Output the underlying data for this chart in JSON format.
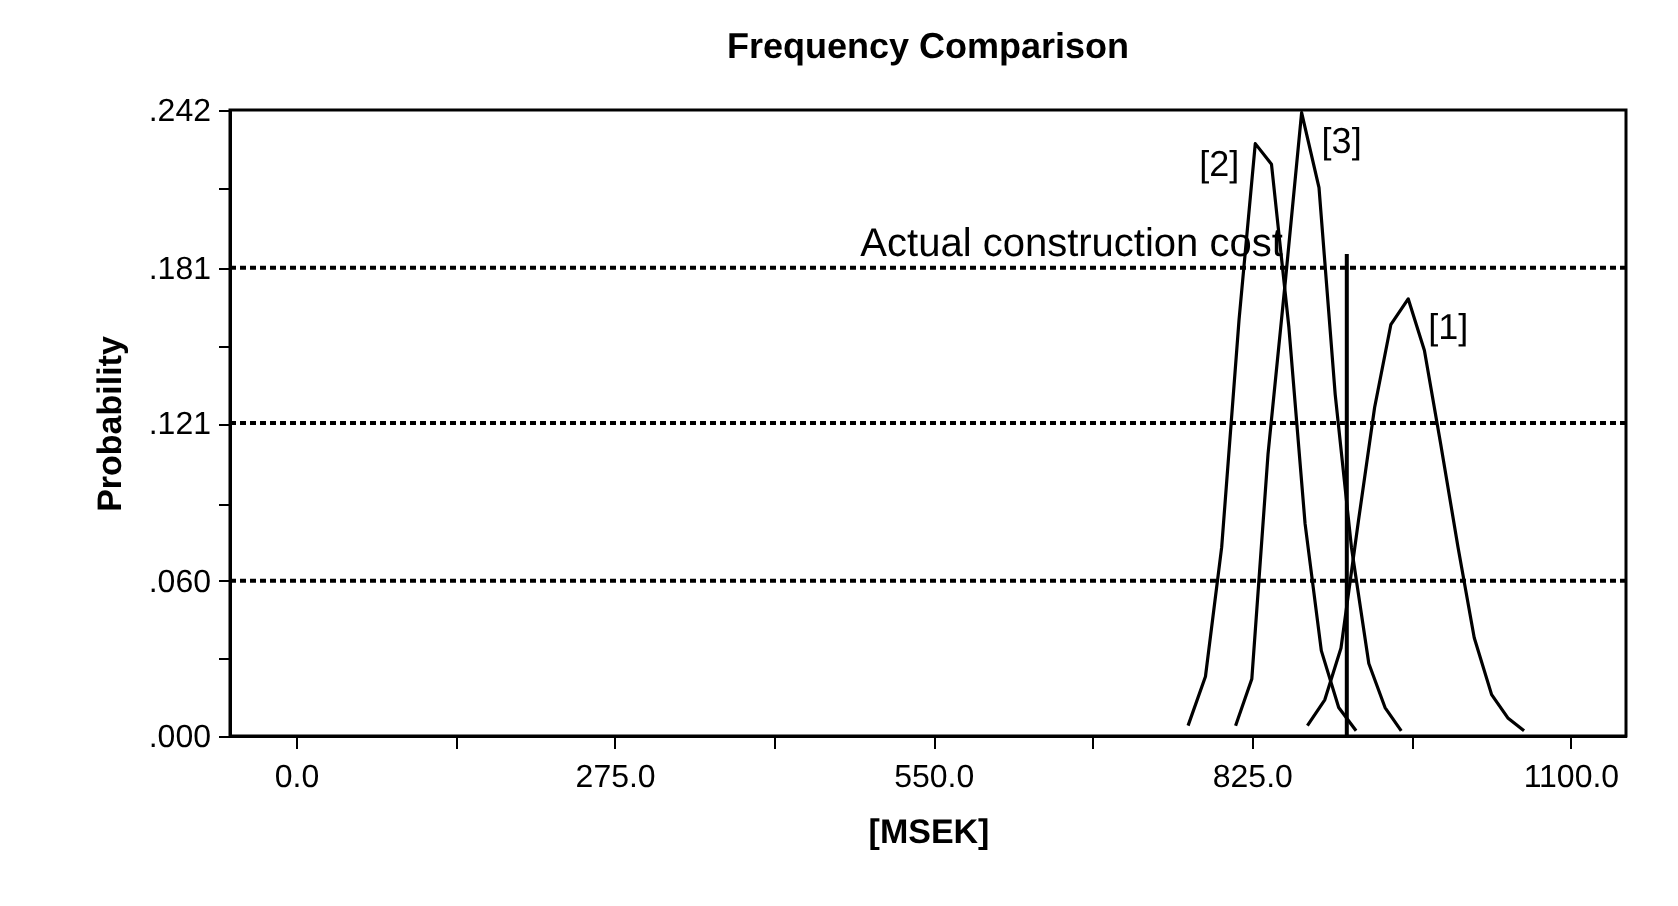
{
  "chart_data": {
    "type": "line",
    "title": "Frequency Comparison",
    "xlabel": "[MSEK]",
    "ylabel": "Probability",
    "xlim": [
      -57,
      1148
    ],
    "xticks": [
      {
        "value": 0,
        "label": "0.0"
      },
      {
        "value": 137.5,
        "label": null
      },
      {
        "value": 275,
        "label": "275.0"
      },
      {
        "value": 412.5,
        "label": null
      },
      {
        "value": 550,
        "label": "550.0"
      },
      {
        "value": 687.5,
        "label": null
      },
      {
        "value": 825,
        "label": "825.0"
      },
      {
        "value": 962.5,
        "label": null
      },
      {
        "value": 1100,
        "label": "1100.0"
      }
    ],
    "ylim": [
      0,
      0.242
    ],
    "yticks": [
      {
        "value": 0,
        "label": ".000"
      },
      {
        "value": 0.03,
        "label": null
      },
      {
        "value": 0.06,
        "label": ".060"
      },
      {
        "value": 0.09,
        "label": null
      },
      {
        "value": 0.121,
        "label": ".121"
      },
      {
        "value": 0.151,
        "label": null
      },
      {
        "value": 0.181,
        "label": ".181"
      },
      {
        "value": 0.212,
        "label": null
      },
      {
        "value": 0.242,
        "label": ".242"
      }
    ],
    "grid": "y",
    "legend": false,
    "marker": "none",
    "line_style": "solid",
    "series": [
      {
        "name": "[1]",
        "color": "#000000",
        "x": [
          873,
          888,
          902,
          917,
          931,
          945,
          960,
          974,
          988,
          1003,
          1017,
          1032,
          1046,
          1060
        ],
        "values": [
          0.004,
          0.014,
          0.034,
          0.083,
          0.127,
          0.159,
          0.169,
          0.149,
          0.113,
          0.073,
          0.038,
          0.016,
          0.007,
          0.002
        ]
      },
      {
        "name": "[2]",
        "color": "#000000",
        "x": [
          770,
          785,
          799,
          814,
          828,
          842,
          857,
          871,
          885,
          900,
          915
        ],
        "values": [
          0.004,
          0.023,
          0.073,
          0.161,
          0.229,
          0.221,
          0.158,
          0.082,
          0.033,
          0.011,
          0.002
        ]
      },
      {
        "name": "[3]",
        "color": "#000000",
        "x": [
          811,
          825,
          839,
          854,
          868,
          883,
          897,
          911,
          926,
          940,
          954
        ],
        "values": [
          0.004,
          0.022,
          0.109,
          0.176,
          0.241,
          0.212,
          0.132,
          0.073,
          0.028,
          0.011,
          0.002
        ]
      }
    ],
    "ref_lines": [
      {
        "axis": "x",
        "value": 907,
        "label": "Actual construction cost"
      }
    ]
  }
}
